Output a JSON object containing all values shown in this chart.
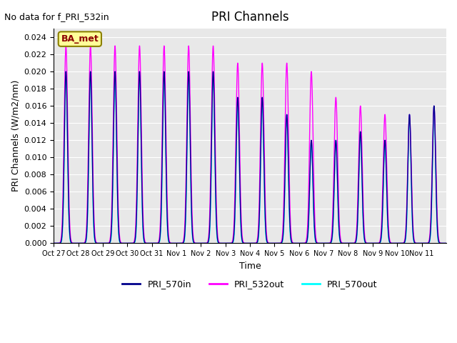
{
  "title": "PRI Channels",
  "no_data_text": "No data for f_PRI_532in",
  "ba_met_label": "BA_met",
  "ylabel": "PRI Channels (W/m2/nm)",
  "xlabel": "Time",
  "ylim": [
    0.0,
    0.025
  ],
  "background_color": "#e8e8e8",
  "fig_background": "#ffffff",
  "line_colors": {
    "PRI_570in": "#00008B",
    "PRI_532out": "#FF00FF",
    "PRI_570out": "#00FFFF"
  },
  "x_tick_labels": [
    "Oct 27",
    "Oct 28",
    "Oct 29",
    "Oct 30",
    "Oct 31",
    "Nov 1",
    "Nov 2",
    "Nov 3",
    "Nov 4",
    "Nov 5",
    "Nov 6",
    "Nov 7",
    "Nov 8",
    "Nov 9",
    "Nov 10",
    "Nov 11"
  ],
  "peaks": {
    "PRI_532out": [
      0.023,
      0.023,
      0.023,
      0.023,
      0.023,
      0.023,
      0.023,
      0.021,
      0.021,
      0.021,
      0.02,
      0.017,
      0.016,
      0.015,
      0.015,
      0.016
    ],
    "PRI_570in": [
      0.02,
      0.02,
      0.02,
      0.02,
      0.02,
      0.02,
      0.02,
      0.017,
      0.017,
      0.015,
      0.012,
      0.012,
      0.013,
      0.012,
      0.015,
      0.016
    ],
    "PRI_570out": [
      0.02,
      0.02,
      0.02,
      0.02,
      0.02,
      0.02,
      0.02,
      0.017,
      0.017,
      0.015,
      0.012,
      0.012,
      0.013,
      0.012,
      0.015,
      0.016
    ]
  }
}
